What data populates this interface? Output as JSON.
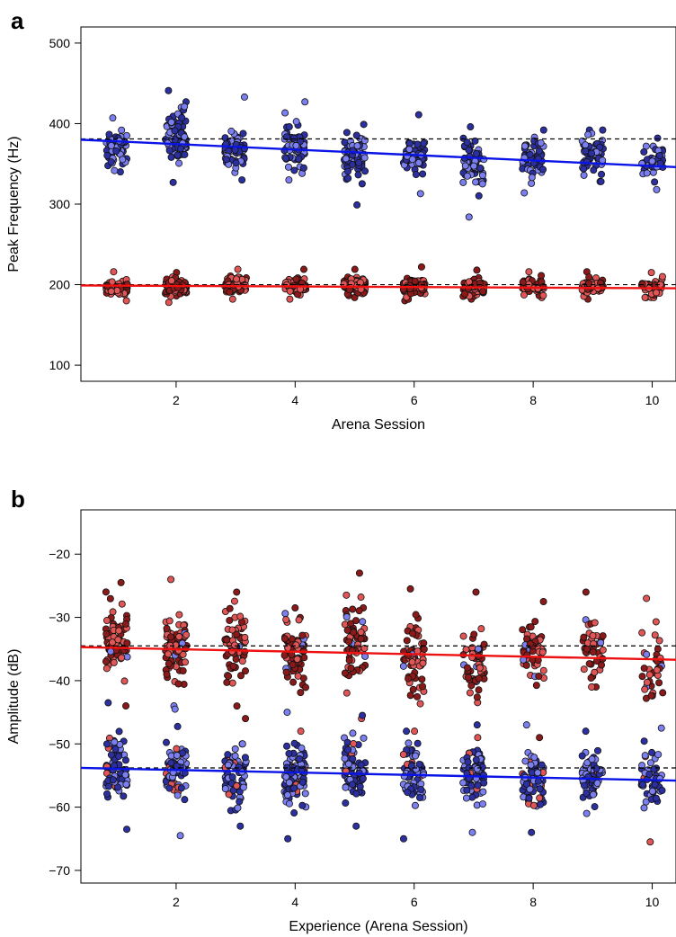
{
  "panels": {
    "a": {
      "letter": "a"
    },
    "b": {
      "letter": "b"
    }
  },
  "colors": {
    "blue_point": "#7b7ff0",
    "blue_point_dark": "#2c2f9e",
    "red_point": "#e05555",
    "red_point_dark": "#8a1a1a",
    "blue_line": "#0a14e6",
    "red_line": "#ee1111",
    "reference_line": "#000000"
  },
  "chart_data": [
    {
      "type": "scatter",
      "panel": "a",
      "title": "",
      "xlabel": "Arena Session",
      "ylabel": "Peak Frequency (Hz)",
      "xlim": [
        0.4,
        10.4
      ],
      "ylim": [
        80,
        520
      ],
      "xticks": [
        2,
        4,
        6,
        8,
        10
      ],
      "yticks": [
        100,
        200,
        300,
        400,
        500
      ],
      "grid": false,
      "sessions": [
        1,
        2,
        3,
        4,
        5,
        6,
        7,
        8,
        9,
        10
      ],
      "series": [
        {
          "color": "blue",
          "center": [
            370,
            382,
            368,
            370,
            360,
            362,
            350,
            360,
            362,
            350
          ],
          "spread": [
            18,
            30,
            22,
            26,
            22,
            20,
            25,
            20,
            18,
            18
          ],
          "min": [
            340,
            327,
            330,
            330,
            299,
            313,
            284,
            314,
            328,
            318
          ],
          "max": [
            407,
            441,
            433,
            427,
            399,
            411,
            396,
            392,
            392,
            382
          ],
          "n": [
            70,
            75,
            60,
            65,
            70,
            65,
            60,
            55,
            60,
            45
          ],
          "trend": {
            "intercept": 380,
            "slope": -3.4
          },
          "reference": 381
        },
        {
          "color": "red",
          "center": [
            196,
            198,
            200,
            198,
            199,
            197,
            196,
            198,
            197,
            196
          ],
          "spread": [
            8,
            8,
            8,
            8,
            8,
            8,
            8,
            8,
            8,
            8
          ],
          "min": [
            180,
            178,
            182,
            182,
            184,
            180,
            182,
            184,
            182,
            184
          ],
          "max": [
            216,
            215,
            219,
            219,
            219,
            222,
            218,
            216,
            216,
            215
          ],
          "n": [
            80,
            80,
            75,
            75,
            80,
            80,
            70,
            60,
            65,
            50
          ],
          "trend": {
            "intercept": 199,
            "slope": -0.35
          },
          "reference": 200
        }
      ]
    },
    {
      "type": "scatter",
      "panel": "b",
      "title": "",
      "xlabel": "Experience (Arena Session)",
      "ylabel": "Amplitude (dB)",
      "xlim": [
        0.4,
        10.4
      ],
      "ylim": [
        -72,
        -13
      ],
      "xticks": [
        2,
        4,
        6,
        8,
        10
      ],
      "yticks": [
        -20,
        -30,
        -40,
        -50,
        -60,
        -70
      ],
      "grid": false,
      "sessions": [
        1,
        2,
        3,
        4,
        5,
        6,
        7,
        8,
        9,
        10
      ],
      "series": [
        {
          "color": "red",
          "center": [
            -34,
            -35,
            -35,
            -36,
            -34,
            -36,
            -37,
            -35,
            -35,
            -38
          ],
          "spread": [
            4.5,
            5,
            5,
            5,
            5,
            5,
            5,
            5,
            4,
            5
          ],
          "min": [
            -44,
            -44,
            -46,
            -48,
            -46,
            -48,
            -49,
            -49,
            -41,
            -52
          ],
          "max": [
            -24.5,
            -24,
            -26,
            -28.5,
            -23,
            -25.5,
            -26,
            -27.5,
            -26,
            -27
          ],
          "n": [
            75,
            70,
            70,
            70,
            65,
            60,
            55,
            55,
            45,
            35
          ],
          "trend": {
            "intercept": -34.7,
            "slope": -0.2
          },
          "reference": -34.5
        },
        {
          "color": "blue",
          "center": [
            -54,
            -54,
            -55,
            -55,
            -54,
            -55,
            -55,
            -56,
            -55,
            -56
          ],
          "spread": [
            4,
            4,
            4,
            4,
            4,
            4,
            4,
            4,
            3.5,
            4
          ],
          "min": [
            -63.5,
            -64.5,
            -63,
            -65,
            -63,
            -65,
            -64,
            -64,
            -61,
            -65.5
          ],
          "max": [
            -43.5,
            -44.5,
            -50,
            -45,
            -45.5,
            -48,
            -47,
            -47,
            -48,
            -47.5
          ],
          "n": [
            70,
            70,
            65,
            90,
            75,
            60,
            65,
            65,
            55,
            45
          ],
          "trend": {
            "intercept": -53.8,
            "slope": -0.2
          },
          "reference": -53.8
        }
      ]
    }
  ]
}
